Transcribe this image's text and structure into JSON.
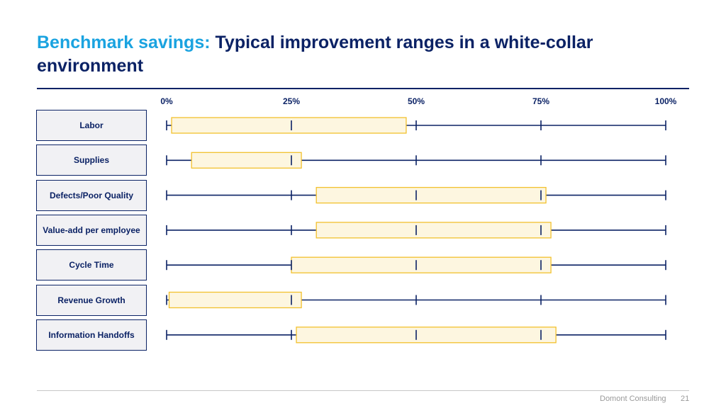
{
  "title": {
    "accent": "Benchmark savings:",
    "main": "Typical improvement ranges in a white-collar environment"
  },
  "footer": {
    "company": "Domont Consulting",
    "page": "21"
  },
  "colors": {
    "navy": "#0b2265",
    "accent": "#1aa3e0",
    "box_stroke": "#f2c12e",
    "box_fill": "#fdf6e0"
  },
  "chart_data": {
    "type": "range",
    "title": "",
    "xlabel": "",
    "ylabel": "",
    "xlim": [
      0,
      100
    ],
    "x_ticks": [
      0,
      25,
      50,
      75,
      100
    ],
    "x_tick_labels": [
      "0%",
      "25%",
      "50%",
      "75%",
      "100%"
    ],
    "categories": [
      "Labor",
      "Supplies",
      "Defects/Poor Quality",
      "Value-add per employee",
      "Cycle Time",
      "Revenue Growth",
      "Information Handoffs"
    ],
    "ranges": [
      [
        1,
        48
      ],
      [
        5,
        27
      ],
      [
        30,
        76
      ],
      [
        30,
        77
      ],
      [
        25,
        77
      ],
      [
        0.5,
        27
      ],
      [
        26,
        78
      ]
    ]
  }
}
